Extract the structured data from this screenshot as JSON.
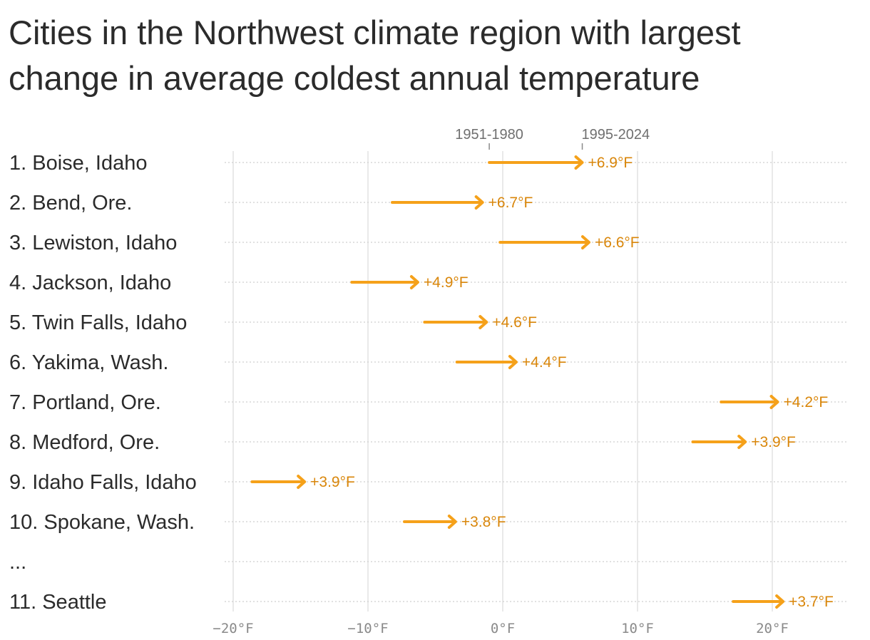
{
  "title": "Cities in the Northwest climate region with largest change in average coldest annual temperature",
  "colors": {
    "arrow": "#F5A11A",
    "label": "#D9860A",
    "grid": "#e2e2e2",
    "text": "#2b2b2b"
  },
  "chart_data": {
    "type": "arrow-range",
    "title": "Cities in the Northwest climate region with largest change in average coldest annual temperature",
    "xlim": [
      -20,
      25
    ],
    "x_ticks": [
      -20,
      -10,
      0,
      10,
      20
    ],
    "x_tick_labels": [
      "−20°F",
      "−10°F",
      "0°F",
      "10°F",
      "20°F"
    ],
    "legend": {
      "start_label": "1951-1980",
      "end_label": "1995-2024",
      "start_value": -1.0,
      "end_value": 5.9
    },
    "rows": [
      {
        "label": "1. Boise, Idaho",
        "start": -1.0,
        "end": 5.9,
        "change": "+6.9°F"
      },
      {
        "label": "2. Bend, Ore.",
        "start": -8.2,
        "end": -1.5,
        "change": "+6.7°F"
      },
      {
        "label": "3. Lewiston, Idaho",
        "start": -0.2,
        "end": 6.4,
        "change": "+6.6°F"
      },
      {
        "label": "4. Jackson, Idaho",
        "start": -11.2,
        "end": -6.3,
        "change": "+4.9°F"
      },
      {
        "label": "5. Twin Falls, Idaho",
        "start": -5.8,
        "end": -1.2,
        "change": "+4.6°F"
      },
      {
        "label": "6. Yakima, Wash.",
        "start": -3.4,
        "end": 1.0,
        "change": "+4.4°F"
      },
      {
        "label": "7. Portland, Ore.",
        "start": 16.2,
        "end": 20.4,
        "change": "+4.2°F"
      },
      {
        "label": "8. Medford, Ore.",
        "start": 14.1,
        "end": 18.0,
        "change": "+3.9°F"
      },
      {
        "label": "9. Idaho Falls, Idaho",
        "start": -18.6,
        "end": -14.7,
        "change": "+3.9°F"
      },
      {
        "label": "10. Spokane, Wash.",
        "start": -7.3,
        "end": -3.5,
        "change": "+3.8°F"
      },
      {
        "label": "...",
        "start": null,
        "end": null,
        "change": ""
      },
      {
        "label": "11. Seattle",
        "start": 17.1,
        "end": 20.8,
        "change": "+3.7°F"
      }
    ]
  }
}
